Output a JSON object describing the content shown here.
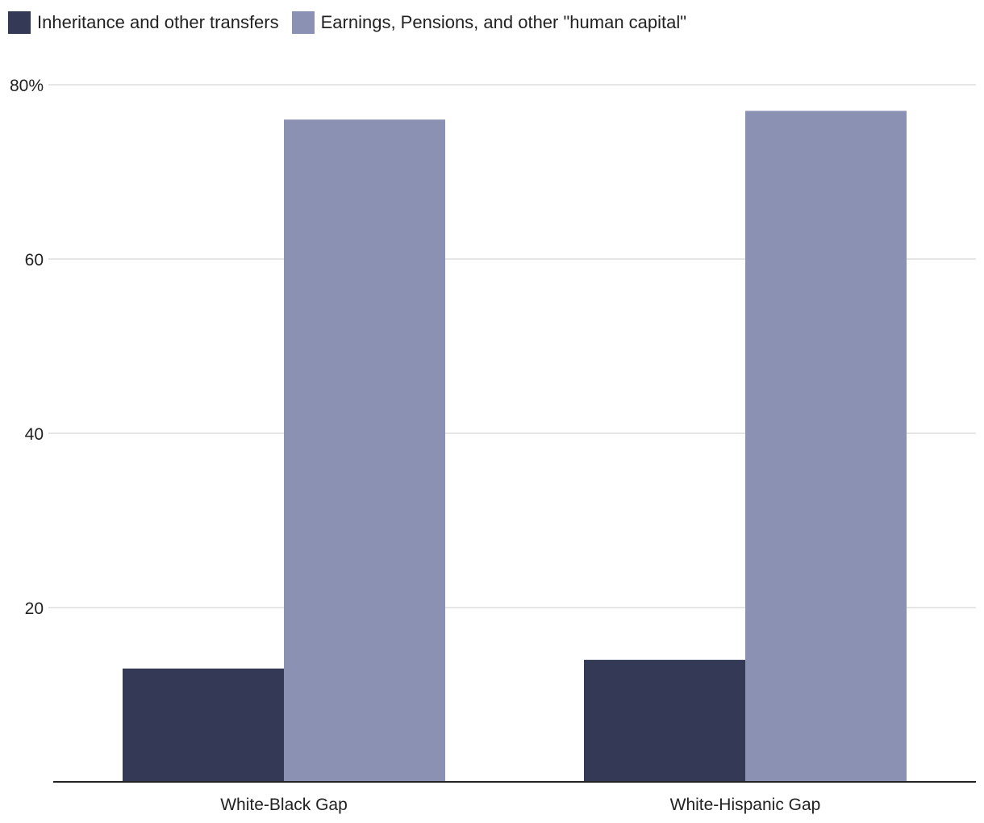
{
  "chart_data": {
    "type": "bar",
    "categories": [
      "White-Black Gap",
      "White-Hispanic Gap"
    ],
    "series": [
      {
        "name": "Inheritance and other transfers",
        "values": [
          13,
          14
        ],
        "color": "#343a55"
      },
      {
        "name": "Earnings, Pensions, and other \"human capital\"",
        "values": [
          76,
          77
        ],
        "color": "#8b91b2"
      }
    ],
    "title": "",
    "xlabel": "",
    "ylabel": "",
    "ylim": [
      0,
      80
    ],
    "yticks": [
      {
        "value": 20,
        "label": "20"
      },
      {
        "value": 40,
        "label": "40"
      },
      {
        "value": 60,
        "label": "60"
      },
      {
        "value": 80,
        "label": "80%"
      }
    ],
    "grid": true,
    "legend_position": "top-left"
  }
}
